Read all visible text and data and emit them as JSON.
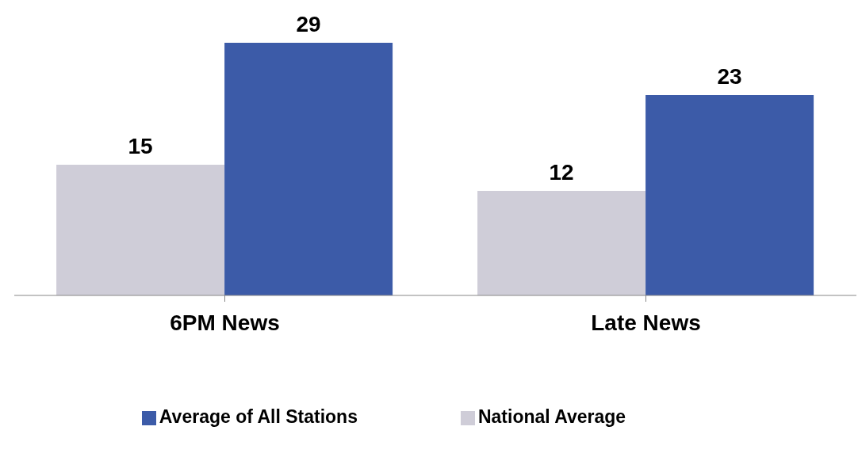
{
  "chart_data": {
    "type": "bar",
    "categories": [
      "6PM News",
      "Late News"
    ],
    "series": [
      {
        "name": "National Average",
        "color": "#cfcdd8",
        "values": [
          15,
          12
        ]
      },
      {
        "name": "Average of All Stations",
        "color": "#3c5ba8",
        "values": [
          29,
          23
        ]
      }
    ],
    "data_labels": true,
    "grid": false,
    "legend": "bottom"
  }
}
